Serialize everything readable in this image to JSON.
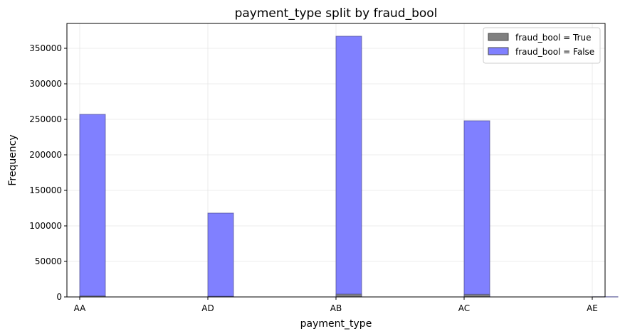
{
  "chart_data": {
    "type": "bar",
    "title": "payment_type split by fraud_bool",
    "xlabel": "payment_type",
    "ylabel": "Frequency",
    "categories": [
      "AA",
      "AD",
      "AB",
      "AC",
      "AE"
    ],
    "ylim": [
      0,
      385000
    ],
    "yticks": [
      0,
      50000,
      100000,
      150000,
      200000,
      250000,
      300000,
      350000
    ],
    "grid": true,
    "legend_position": "top-right",
    "series": [
      {
        "name": "fraud_bool = True",
        "color": "#808080",
        "values": [
          1500,
          900,
          4000,
          3700,
          20
        ]
      },
      {
        "name": "fraud_bool = False",
        "color": "#8080ff",
        "values": [
          257000,
          118000,
          367000,
          248000,
          200
        ]
      }
    ]
  }
}
